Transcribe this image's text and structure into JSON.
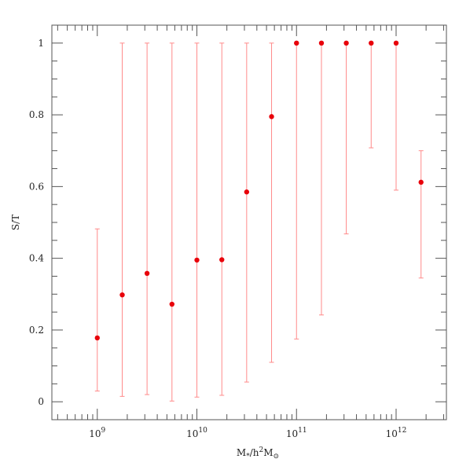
{
  "chart_data": {
    "type": "scatter",
    "xscale": "log",
    "xlim": [
      350000000.0,
      3200000000000.0
    ],
    "ylim": [
      -0.05,
      1.05
    ],
    "xlabel": "M",
    "xlabel_sub": "*",
    "xlabel_mid": "/h",
    "xlabel_sup": "2",
    "xlabel_end": "M",
    "xlabel_end_sub": "⊙",
    "ylabel": "S/T",
    "xticks": [
      {
        "base": "10",
        "exp": "9",
        "value": 1000000000.0
      },
      {
        "base": "10",
        "exp": "10",
        "value": 10000000000.0
      },
      {
        "base": "10",
        "exp": "11",
        "value": 100000000000.0
      },
      {
        "base": "10",
        "exp": "12",
        "value": 1000000000000.0
      }
    ],
    "yticks": [
      "0",
      "0.2",
      "0.4",
      "0.6",
      "0.8",
      "1"
    ],
    "marker_color": "#e8000a",
    "errorbar_color": "#ff8a8a",
    "points": [
      {
        "x": 1000000000.0,
        "y": 0.178,
        "ylo": 0.03,
        "yhi": 0.482
      },
      {
        "x": 1780000000.0,
        "y": 0.298,
        "ylo": 0.015,
        "yhi": 1.0
      },
      {
        "x": 3160000000.0,
        "y": 0.358,
        "ylo": 0.02,
        "yhi": 1.0
      },
      {
        "x": 5620000000.0,
        "y": 0.272,
        "ylo": 0.002,
        "yhi": 1.0
      },
      {
        "x": 10000000000.0,
        "y": 0.395,
        "ylo": 0.013,
        "yhi": 1.0
      },
      {
        "x": 17800000000.0,
        "y": 0.396,
        "ylo": 0.018,
        "yhi": 1.0
      },
      {
        "x": 31600000000.0,
        "y": 0.585,
        "ylo": 0.055,
        "yhi": 1.0
      },
      {
        "x": 56200000000.0,
        "y": 0.795,
        "ylo": 0.11,
        "yhi": 1.0
      },
      {
        "x": 100000000000.0,
        "y": 1.0,
        "ylo": 0.175,
        "yhi": 1.0
      },
      {
        "x": 178000000000.0,
        "y": 1.0,
        "ylo": 0.242,
        "yhi": 1.0
      },
      {
        "x": 316000000000.0,
        "y": 1.0,
        "ylo": 0.468,
        "yhi": 1.0
      },
      {
        "x": 562000000000.0,
        "y": 1.0,
        "ylo": 0.708,
        "yhi": 1.0
      },
      {
        "x": 1000000000000.0,
        "y": 1.0,
        "ylo": 0.59,
        "yhi": 1.0
      },
      {
        "x": 1780000000000.0,
        "y": 0.612,
        "ylo": 0.345,
        "yhi": 0.7
      }
    ]
  }
}
